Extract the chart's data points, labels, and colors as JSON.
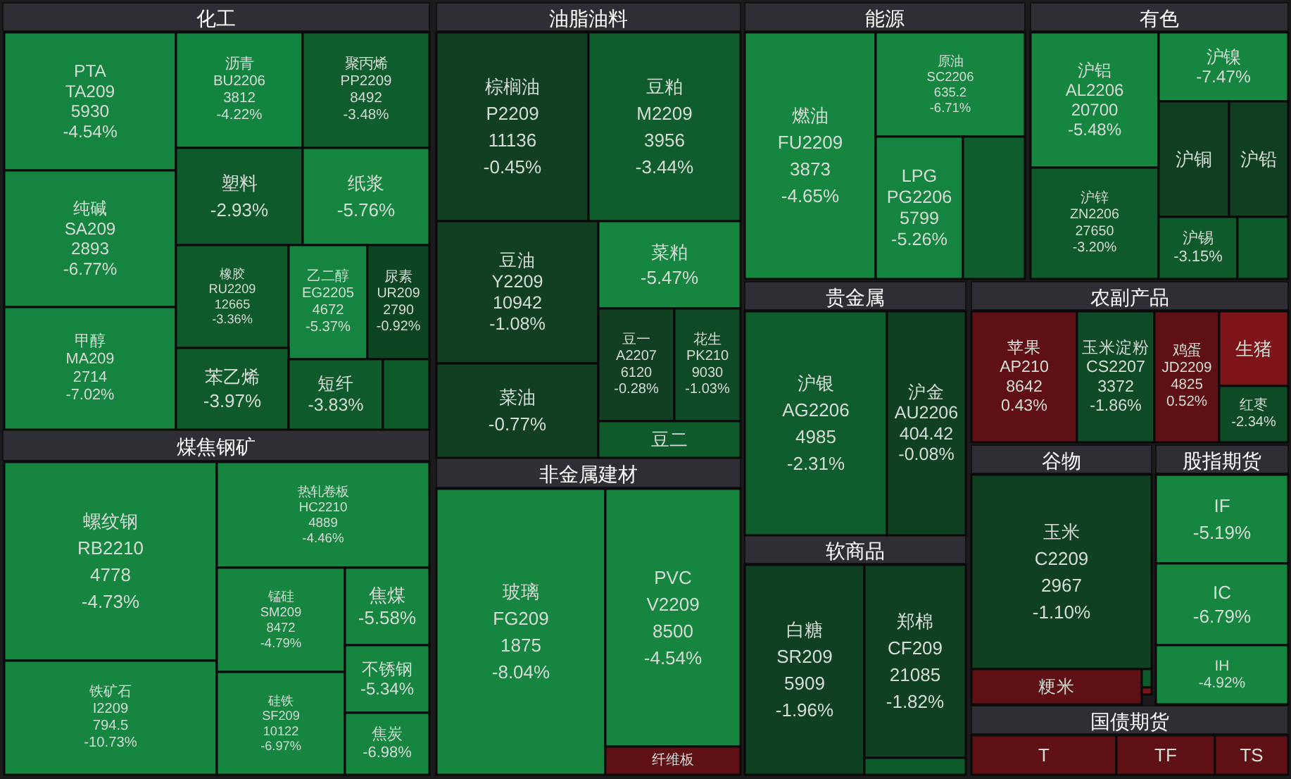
{
  "chart_data": {
    "type": "other",
    "annotations": [
      "化工",
      "煤焦钢矿",
      "油脂油料",
      "非金属建材",
      "能源",
      "有色",
      "贵金属",
      "软商品",
      "农副产品",
      "谷物",
      "股指期货",
      "国债期货"
    ],
    "categories": [
      "PTA",
      "纯碱",
      "甲醇",
      "沥青",
      "聚丙烯",
      "塑料",
      "纸浆",
      "橡胶",
      "乙二醇",
      "尿素",
      "苯乙烯",
      "短纤",
      null,
      "螺纹钢",
      "铁矿石",
      "热轧卷板",
      "锰硅",
      "硅铁",
      "焦煤",
      "不锈钢",
      "焦炭",
      "棕榈油",
      "豆粕",
      "豆油",
      "菜粕",
      "菜油",
      "豆一",
      "花生",
      "豆二",
      "玻璃",
      "PVC",
      "纤维板",
      "燃油",
      "原油",
      "LPG",
      null,
      "沪铝",
      "沪锌",
      "沪镍",
      "沪铜",
      "沪铅",
      "沪锡",
      null,
      "沪银",
      "沪金",
      "白糖",
      "郑棉",
      null,
      "苹果",
      "玉米淀粉",
      "鸡蛋",
      "生猪",
      "红枣",
      "玉米",
      "粳米",
      null,
      null,
      "IF",
      "IC",
      "IH",
      "T",
      "TF",
      "TS"
    ],
    "cell_labels": [
      [
        "TA209",
        "5930"
      ],
      [
        "SA209",
        "2893"
      ],
      [
        "MA209",
        "2714"
      ],
      [
        "BU2206",
        "3812"
      ],
      [
        "PP2209",
        "8492"
      ],
      null,
      null,
      [
        "RU2209",
        "12665"
      ],
      [
        "EG2205",
        "4672"
      ],
      [
        "UR209",
        "2790"
      ],
      null,
      null,
      null,
      [
        "RB2210",
        "4778"
      ],
      [
        "I2209",
        "794.5"
      ],
      [
        "HC2210",
        "4889"
      ],
      [
        "SM209",
        "8472"
      ],
      [
        "SF209",
        "10122"
      ],
      null,
      null,
      null,
      [
        "P2209",
        "11136"
      ],
      [
        "M2209",
        "3956"
      ],
      [
        "Y2209",
        "10942"
      ],
      null,
      null,
      [
        "A2207",
        "6120"
      ],
      [
        "PK210",
        "9030"
      ],
      null,
      [
        "FG209",
        "1875"
      ],
      [
        "V2209",
        "8500"
      ],
      null,
      [
        "FU2209",
        "3873"
      ],
      [
        "SC2206",
        "635.2"
      ],
      [
        "PG2206",
        "5799"
      ],
      null,
      [
        "AL2206",
        "20700"
      ],
      [
        "ZN2206",
        "27650"
      ],
      null,
      null,
      null,
      null,
      null,
      [
        "AG2206",
        "4985"
      ],
      [
        "AU2206",
        "404.42"
      ],
      [
        "SR209",
        "5909"
      ],
      [
        "CF209",
        "21085"
      ],
      null,
      [
        "AP210",
        "8642"
      ],
      [
        "CS2207",
        "3372"
      ],
      [
        "JD2209",
        "4825"
      ],
      null,
      null,
      [
        "C2209",
        "2967"
      ],
      null,
      null,
      null,
      null,
      null,
      null,
      null,
      null,
      null
    ],
    "value_labels": [
      "-4.54%",
      "-6.77%",
      "-7.02%",
      "-4.22%",
      "-3.48%",
      "-2.93%",
      "-5.76%",
      "-3.36%",
      "-5.37%",
      "-0.92%",
      "-3.97%",
      "-3.83%",
      null,
      "-4.73%",
      "-10.73%",
      "-4.46%",
      "-4.79%",
      "-6.97%",
      "-5.58%",
      "-5.34%",
      "-6.98%",
      "-0.45%",
      "-3.44%",
      "-1.08%",
      "-5.47%",
      "-0.77%",
      "-0.28%",
      "-1.03%",
      null,
      "-8.04%",
      "-4.54%",
      null,
      "-4.65%",
      "-6.71%",
      "-5.26%",
      null,
      "-5.48%",
      "-3.20%",
      "-7.47%",
      null,
      null,
      "-3.15%",
      null,
      "-2.31%",
      "-0.08%",
      "-1.96%",
      "-1.82%",
      null,
      "0.43%",
      "-1.86%",
      "0.52%",
      null,
      "-2.34%",
      "-1.10%",
      null,
      null,
      null,
      "-5.19%",
      "-6.79%",
      "-4.92%",
      null,
      null,
      null
    ],
    "values": [
      -4.54,
      -6.77,
      -7.02,
      -4.22,
      -3.48,
      -2.93,
      -5.76,
      -3.36,
      -5.37,
      -0.92,
      -3.97,
      -3.83,
      null,
      -4.73,
      -10.73,
      -4.46,
      -4.79,
      -6.97,
      -5.58,
      -5.34,
      -6.98,
      -0.45,
      -3.44,
      -1.08,
      -5.47,
      -0.77,
      -0.28,
      -1.03,
      null,
      -8.04,
      -4.54,
      null,
      -4.65,
      -6.71,
      -5.26,
      null,
      -5.48,
      -3.2,
      -7.47,
      null,
      null,
      -3.15,
      null,
      -2.31,
      -0.08,
      -1.96,
      -1.82,
      null,
      0.43,
      -1.86,
      0.52,
      null,
      -2.34,
      -1.1,
      null,
      null,
      null,
      -5.19,
      -6.79,
      -4.92,
      null,
      null,
      null
    ],
    "colors": [
      "#148440",
      "#148440",
      "#148440",
      "#138440",
      "#0f5c2c",
      "#0f5a2b",
      "#158540",
      "#0f5a2b",
      "#148440",
      "#0d4422",
      "#0f5a2b",
      "#0f5a2b",
      "#0f5a2b",
      "#158540",
      "#158540",
      "#158540",
      "#158540",
      "#158540",
      "#158540",
      "#158540",
      "#158540",
      "#103f22",
      "#0f5c2c",
      "#103f22",
      "#158540",
      "#103f22",
      "#103f22",
      "#0f4a27",
      "#0f5a2b",
      "#158540",
      "#158540",
      "#5e1014",
      "#158540",
      "#158540",
      "#148440",
      "#0f5c2c",
      "#158540",
      "#0f5a2b",
      "#158540",
      "#0f3f20",
      "#0f3f20",
      "#0f5a2b",
      "#0f5a2b",
      "#0f5c2c",
      "#0f4022",
      "#0f4022",
      "#0f4022",
      "#0f5a2b",
      "#5e1014",
      "#0f4a27",
      "#5e1014",
      "#7c1418",
      "#0f4a27",
      "#0f4022",
      "#5e1014",
      "#0f5a2b",
      "#7c1418",
      "#158540",
      "#158540",
      "#158540",
      "#5e1014",
      "#5e1014",
      "#5e1014"
    ]
  }
}
